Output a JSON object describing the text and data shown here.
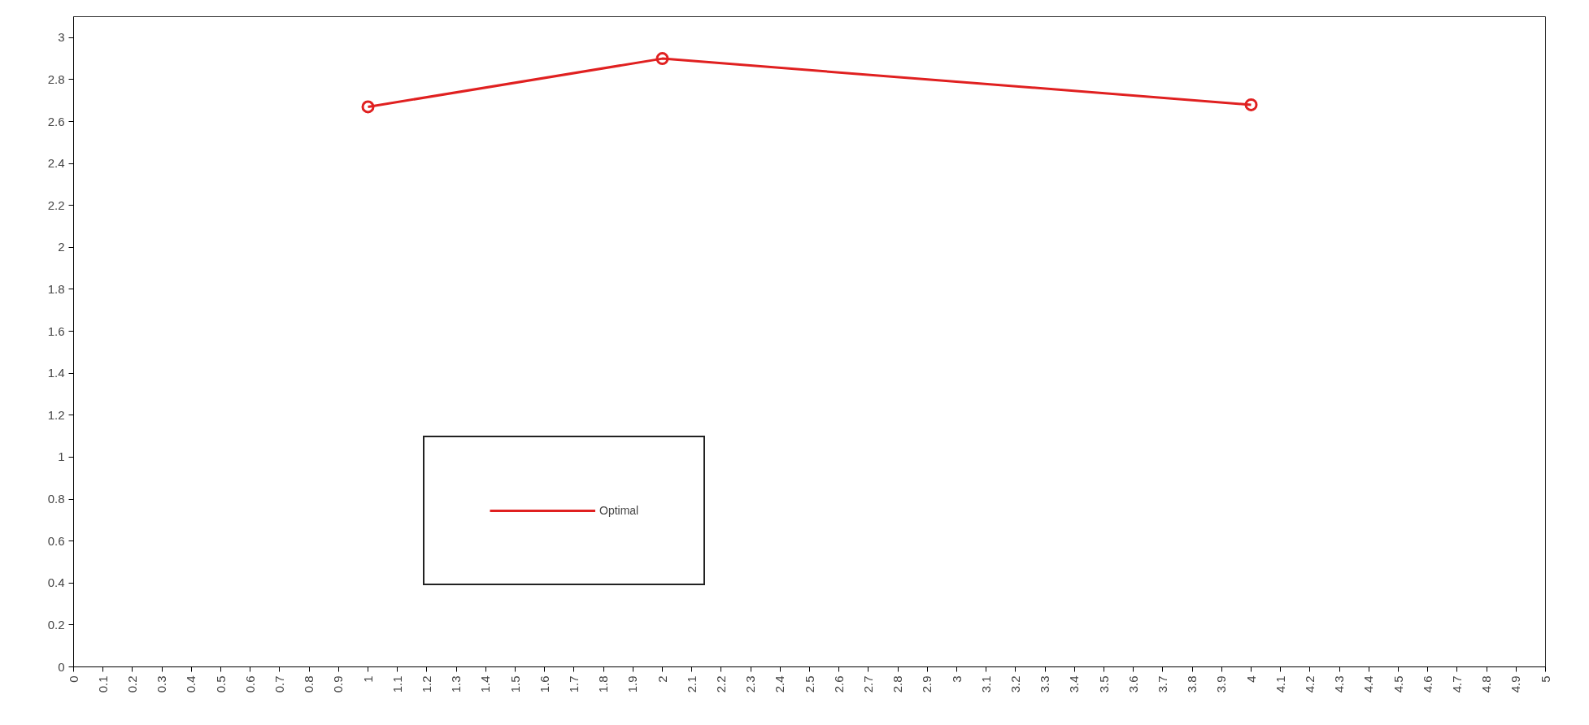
{
  "chart_data": {
    "type": "line",
    "x": [
      1,
      2,
      4
    ],
    "series": [
      {
        "name": "Optimal",
        "color": "#e02020",
        "values": [
          2.67,
          2.9,
          2.68
        ]
      }
    ],
    "xlim": [
      0,
      5
    ],
    "ylim": [
      0,
      3.1
    ],
    "xticks": [
      0,
      0.1,
      0.2,
      0.3,
      0.4,
      0.5,
      0.6,
      0.7,
      0.8,
      0.9,
      1,
      1.1,
      1.2,
      1.3,
      1.4,
      1.5,
      1.6,
      1.7,
      1.8,
      1.9,
      2,
      2.1,
      2.2,
      2.3,
      2.4,
      2.5,
      2.6,
      2.7,
      2.8,
      2.9,
      3,
      3.1,
      3.2,
      3.3,
      3.4,
      3.5,
      3.6,
      3.7,
      3.8,
      3.9,
      4,
      4.1,
      4.2,
      4.3,
      4.4,
      4.5,
      4.6,
      4.7,
      4.8,
      4.9,
      5
    ],
    "yticks": [
      0,
      0.2,
      0.4,
      0.6,
      0.8,
      1,
      1.2,
      1.4,
      1.6,
      1.8,
      2,
      2.2,
      2.4,
      2.6,
      2.8,
      3
    ],
    "grid": false,
    "legend": "bottom left",
    "marker": "circle",
    "line_style": "solid"
  }
}
